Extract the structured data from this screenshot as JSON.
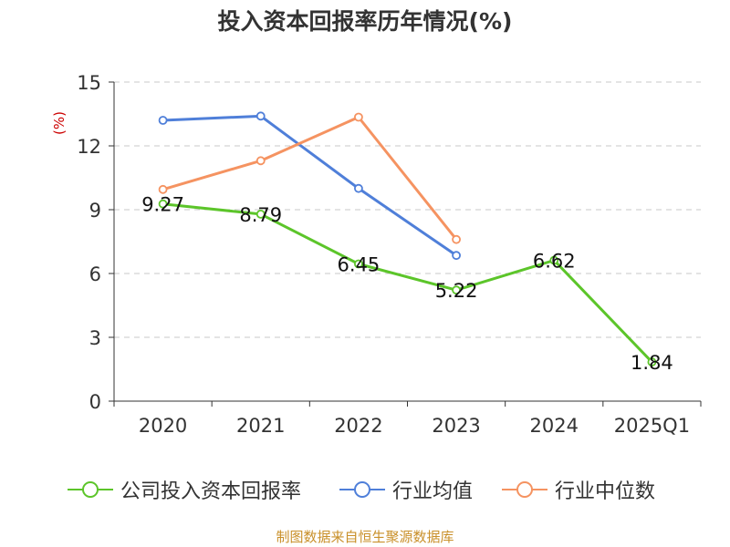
{
  "chart_data": {
    "type": "line",
    "title": "投入资本回报率历年情况(%)",
    "ylabel": "(%)",
    "categories": [
      "2020",
      "2021",
      "2022",
      "2023",
      "2024",
      "2025Q1"
    ],
    "ylim": [
      0,
      15
    ],
    "yticks": [
      0,
      3,
      6,
      9,
      12,
      15
    ],
    "grid": true,
    "legend_position": "bottom",
    "series": [
      {
        "name": "公司投入资本回报率",
        "color": "#5cc52a",
        "values": [
          9.27,
          8.79,
          6.45,
          5.22,
          6.62,
          1.84
        ],
        "labels": [
          "9.27",
          "8.79",
          "6.45",
          "5.22",
          "6.62",
          "1.84"
        ]
      },
      {
        "name": "行业均值",
        "color": "#4f7fd9",
        "values": [
          13.2,
          13.4,
          10.0,
          6.85,
          null,
          null
        ]
      },
      {
        "name": "行业中位数",
        "color": "#f59361",
        "values": [
          9.95,
          11.3,
          13.35,
          7.6,
          null,
          null
        ]
      }
    ]
  },
  "source": "制图数据来自恒生聚源数据库"
}
